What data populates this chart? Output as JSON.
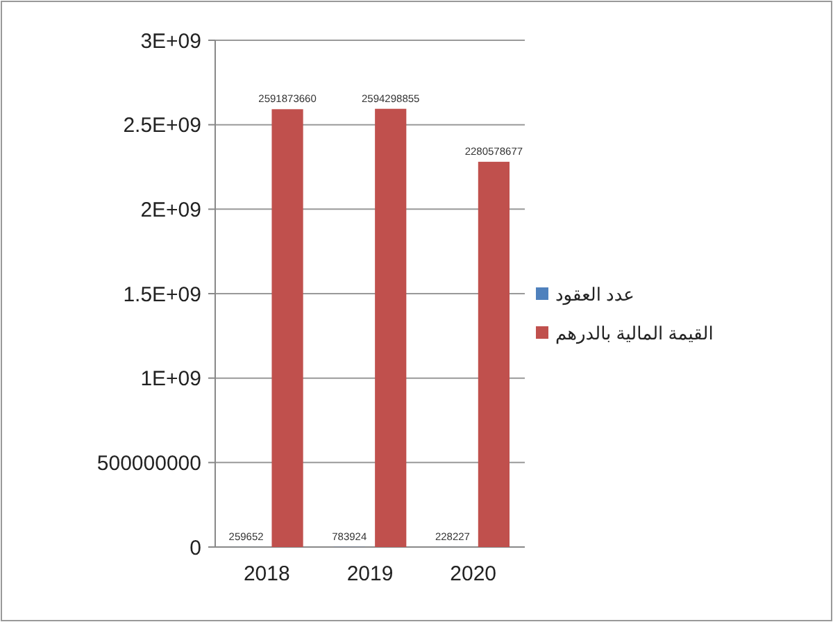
{
  "chart_data": {
    "type": "bar",
    "categories": [
      "2018",
      "2019",
      "2020"
    ],
    "series": [
      {
        "name": "عدد العقود",
        "color": "#4f81bd",
        "values": [
          259652,
          783924,
          228227
        ]
      },
      {
        "name": "القيمة المالية بالدرهم",
        "color": "#c0504d",
        "values": [
          2591873660,
          2594298855,
          2280578677
        ]
      }
    ],
    "ylim": [
      0,
      3000000000
    ],
    "yticks": [
      0,
      500000000,
      {
        "value": 1000000000,
        "label": "1E+09"
      },
      {
        "value": 1500000000,
        "label": "1.5E+09"
      },
      {
        "value": 2000000000,
        "label": "2E+09"
      },
      {
        "value": 2500000000,
        "label": "2.5E+09"
      },
      {
        "value": 3000000000,
        "label": "3E+09"
      }
    ],
    "grid": "y",
    "legend": "right",
    "data_labels": true
  }
}
